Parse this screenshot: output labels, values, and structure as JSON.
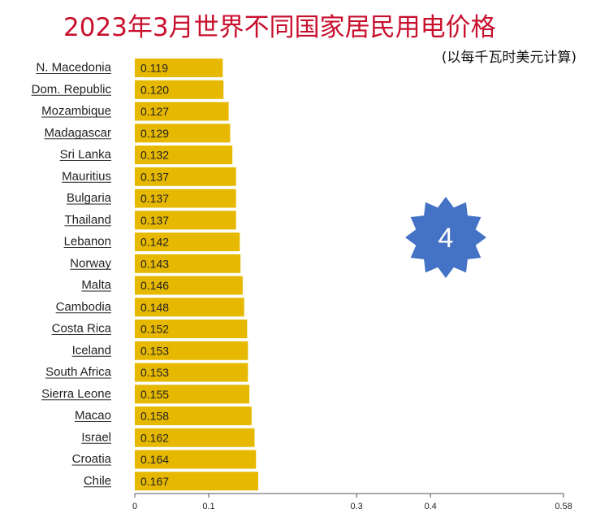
{
  "title": "2023年3月世界不同国家居民用电价格",
  "subtitle": "(以每千瓦时美元计算)",
  "badge": {
    "text": "4",
    "color": "#4472c4"
  },
  "chart_data": {
    "type": "bar",
    "orientation": "horizontal",
    "categories": [
      "N. Macedonia",
      "Dom. Republic",
      "Mozambique",
      "Madagascar",
      "Sri Lanka",
      "Mauritius",
      "Bulgaria",
      "Thailand",
      "Lebanon",
      "Norway",
      "Malta",
      "Cambodia",
      "Costa Rica",
      "Iceland",
      "South Africa",
      "Sierra Leone",
      "Macao",
      "Israel",
      "Croatia",
      "Chile"
    ],
    "values": [
      0.119,
      0.12,
      0.127,
      0.129,
      0.132,
      0.137,
      0.137,
      0.137,
      0.142,
      0.143,
      0.146,
      0.148,
      0.152,
      0.153,
      0.153,
      0.155,
      0.158,
      0.162,
      0.164,
      0.167
    ],
    "value_labels": [
      "0.119",
      "0.120",
      "0.127",
      "0.129",
      "0.132",
      "0.137",
      "0.137",
      "0.137",
      "0.142",
      "0.143",
      "0.146",
      "0.148",
      "0.152",
      "0.153",
      "0.153",
      "0.155",
      "0.158",
      "0.162",
      "0.164",
      "0.167"
    ],
    "xlim": [
      0,
      0.58
    ],
    "x_ticks": [
      0,
      0.1,
      0.3,
      0.4,
      0.58
    ],
    "x_tick_labels": [
      "0",
      "0.1",
      "0.3",
      "0.4",
      "0.58"
    ],
    "bar_color": "#e6b800",
    "grid": false,
    "legend": "none"
  }
}
